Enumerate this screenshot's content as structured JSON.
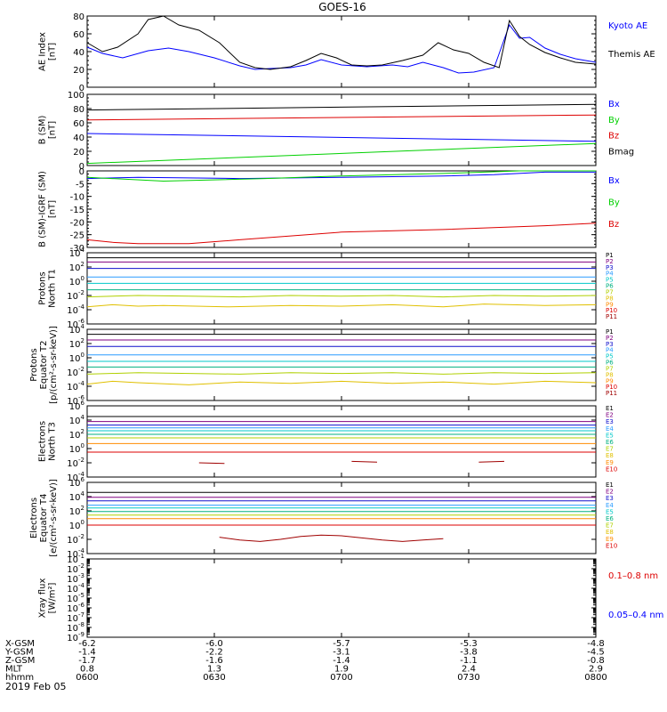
{
  "title": "GOES-16",
  "date_label": "2019 Feb 05",
  "time_ticks": [
    "0600",
    "0630",
    "0700",
    "0730",
    "0800"
  ],
  "orbit_rows": [
    {
      "label": "X-GSM",
      "values": [
        "-6.2",
        "-6.0",
        "-5.7",
        "-5.3",
        "-4.8"
      ]
    },
    {
      "label": "Y-GSM",
      "values": [
        "-1.4",
        "-2.2",
        "-3.1",
        "-3.8",
        "-4.5"
      ]
    },
    {
      "label": "Z-GSM",
      "values": [
        "-1.7",
        "-1.6",
        "-1.4",
        "-1.1",
        "-0.8"
      ]
    },
    {
      "label": "MLT",
      "values": [
        "0.8",
        "1.3",
        "1.9",
        "2.4",
        "2.9"
      ]
    },
    {
      "label": "hhmm",
      "values": [
        "0600",
        "0630",
        "0700",
        "0730",
        "0800"
      ]
    }
  ],
  "colors": {
    "black": "#000000",
    "blue": "#0000ff",
    "red": "#dd0000",
    "green": "#00d000",
    "purple": "#800080",
    "navy": "#1010cc",
    "skyblue": "#2a9cff",
    "cyan": "#00c8c8",
    "teal": "#00b080",
    "yellowgreen": "#b0d000",
    "yellow": "#e0c000",
    "orange": "#ff8c00",
    "darkred": "#a00000",
    "magenta": "#cc00cc"
  },
  "chart_data": [
    {
      "type": "line",
      "ylabel": [
        "AE Index",
        "[nT]"
      ],
      "ylim": [
        0,
        80
      ],
      "yticks": [
        0,
        20,
        40,
        60,
        80
      ],
      "series": [
        {
          "name": "Kyoto AE",
          "color": "blue",
          "x": [
            0,
            0.03,
            0.07,
            0.12,
            0.16,
            0.2,
            0.25,
            0.3,
            0.33,
            0.36,
            0.4,
            0.43,
            0.46,
            0.5,
            0.55,
            0.6,
            0.63,
            0.66,
            0.7,
            0.73,
            0.76,
            0.8,
            0.83,
            0.85,
            0.87,
            0.9,
            0.93,
            0.96,
            1
          ],
          "y": [
            45,
            38,
            33,
            41,
            44,
            40,
            33,
            24,
            20,
            21,
            22,
            25,
            31,
            25,
            23,
            25,
            23,
            28,
            22,
            16,
            17,
            22,
            70,
            55,
            56,
            44,
            37,
            32,
            28
          ]
        },
        {
          "name": "Themis AE",
          "color": "black",
          "x": [
            0,
            0.03,
            0.06,
            0.1,
            0.12,
            0.15,
            0.18,
            0.22,
            0.26,
            0.3,
            0.33,
            0.36,
            0.4,
            0.43,
            0.46,
            0.49,
            0.52,
            0.55,
            0.58,
            0.62,
            0.66,
            0.69,
            0.72,
            0.75,
            0.78,
            0.81,
            0.83,
            0.85,
            0.87,
            0.9,
            0.93,
            0.96,
            1
          ],
          "y": [
            50,
            40,
            45,
            60,
            76,
            80,
            70,
            64,
            50,
            28,
            22,
            20,
            23,
            30,
            38,
            33,
            25,
            24,
            25,
            30,
            36,
            50,
            42,
            38,
            28,
            22,
            75,
            57,
            48,
            39,
            33,
            28,
            26
          ]
        }
      ]
    },
    {
      "type": "line",
      "ylabel": [
        "B (SM)",
        "[nT]"
      ],
      "ylim": [
        0,
        100
      ],
      "yticks": [
        0,
        20,
        40,
        60,
        80,
        100
      ],
      "series": [
        {
          "name": "Bx",
          "color": "blue",
          "x": [
            0,
            1
          ],
          "y": [
            45,
            34
          ]
        },
        {
          "name": "By",
          "color": "green",
          "x": [
            0,
            1
          ],
          "y": [
            3,
            31
          ]
        },
        {
          "name": "Bz",
          "color": "red",
          "x": [
            0,
            1
          ],
          "y": [
            64,
            71
          ]
        },
        {
          "name": "Bmag",
          "color": "black",
          "x": [
            0,
            1
          ],
          "y": [
            78,
            86
          ]
        }
      ]
    },
    {
      "type": "line",
      "ylabel": [
        "B (SM)-IGRF (SM)",
        "[nT]"
      ],
      "ylim": [
        -30,
        0
      ],
      "yticks": [
        -30,
        -25,
        -20,
        -15,
        -10,
        -5,
        0
      ],
      "series": [
        {
          "name": "Bx",
          "color": "blue",
          "x": [
            0,
            0.1,
            0.3,
            0.5,
            0.7,
            0.8,
            0.9,
            1
          ],
          "y": [
            -3,
            -2.5,
            -3,
            -2.5,
            -2,
            -1.5,
            -0.5,
            -0.5
          ]
        },
        {
          "name": "By",
          "color": "green",
          "x": [
            0,
            0.15,
            0.35,
            0.5,
            0.7,
            0.85,
            1
          ],
          "y": [
            -2.5,
            -4,
            -3,
            -2,
            -1,
            0,
            0
          ]
        },
        {
          "name": "Bz",
          "color": "red",
          "x": [
            0,
            0.05,
            0.1,
            0.2,
            0.3,
            0.5,
            0.7,
            0.9,
            1
          ],
          "y": [
            -27,
            -28,
            -28.5,
            -28.5,
            -27,
            -24,
            -23,
            -21.5,
            -20.5
          ]
        }
      ]
    },
    {
      "type": "line",
      "log": true,
      "ylabel": [
        "Protons",
        "North T1"
      ],
      "ylim": [
        -6,
        4
      ],
      "ytick_exponents": [
        4,
        2,
        0,
        -2,
        -4,
        -6
      ],
      "series": [
        {
          "name": "P1",
          "color": "black",
          "x": [
            0,
            1
          ],
          "y": [
            3.3,
            3.3
          ]
        },
        {
          "name": "P2",
          "color": "purple",
          "x": [
            0,
            1
          ],
          "y": [
            2.7,
            2.7
          ]
        },
        {
          "name": "P3",
          "color": "navy",
          "x": [
            0,
            1
          ],
          "y": [
            1.8,
            1.8
          ]
        },
        {
          "name": "P4",
          "color": "skyblue",
          "x": [
            0,
            1
          ],
          "y": [
            0.6,
            0.6
          ]
        },
        {
          "name": "P5",
          "color": "cyan",
          "x": [
            0,
            1
          ],
          "y": [
            -0.3,
            -0.3
          ]
        },
        {
          "name": "P6",
          "color": "teal",
          "x": [
            0,
            1
          ],
          "y": [
            -1.2,
            -1.2
          ]
        },
        {
          "name": "P7",
          "color": "yellowgreen",
          "x": [
            0,
            0.1,
            0.2,
            0.3,
            0.4,
            0.5,
            0.6,
            0.7,
            0.8,
            0.9,
            1
          ],
          "y": [
            -2.2,
            -2,
            -2.1,
            -2.2,
            -2,
            -2.1,
            -2,
            -2.2,
            -2,
            -2.1,
            -2
          ]
        },
        {
          "name": "P8",
          "color": "yellow",
          "x": [
            0,
            0.05,
            0.1,
            0.15,
            0.28,
            0.4,
            0.5,
            0.6,
            0.7,
            0.78,
            0.9,
            1
          ],
          "y": [
            -3.6,
            -3.3,
            -3.5,
            -3.4,
            -3.6,
            -3.4,
            -3.5,
            -3.3,
            -3.6,
            -3.2,
            -3.4,
            -3.3
          ]
        }
      ]
    },
    {
      "type": "line",
      "log": true,
      "ylabel": [
        "Protons",
        "Equator T2",
        "[p/(cm²-s-sr-keV)]"
      ],
      "ylim": [
        -6,
        4
      ],
      "ytick_exponents": [
        4,
        2,
        0,
        -2,
        -4,
        -6
      ],
      "series": [
        {
          "name": "P1",
          "color": "black",
          "x": [
            0,
            1
          ],
          "y": [
            3.3,
            3.3
          ]
        },
        {
          "name": "P2",
          "color": "purple",
          "x": [
            0,
            1
          ],
          "y": [
            2.5,
            2.5
          ]
        },
        {
          "name": "P3",
          "color": "navy",
          "x": [
            0,
            1
          ],
          "y": [
            1.6,
            1.6
          ]
        },
        {
          "name": "P4",
          "color": "skyblue",
          "x": [
            0,
            1
          ],
          "y": [
            0.4,
            0.4
          ]
        },
        {
          "name": "P5",
          "color": "cyan",
          "x": [
            0,
            1
          ],
          "y": [
            -0.5,
            -0.5
          ]
        },
        {
          "name": "P6",
          "color": "teal",
          "x": [
            0,
            1
          ],
          "y": [
            -1.3,
            -1.3
          ]
        },
        {
          "name": "P7",
          "color": "yellowgreen",
          "x": [
            0,
            0.1,
            0.2,
            0.3,
            0.4,
            0.5,
            0.6,
            0.7,
            0.8,
            0.9,
            1
          ],
          "y": [
            -2.3,
            -2.1,
            -2.2,
            -2.3,
            -2.1,
            -2.2,
            -2.1,
            -2.3,
            -2.1,
            -2.2,
            -2.1
          ]
        },
        {
          "name": "P8",
          "color": "yellow",
          "x": [
            0,
            0.05,
            0.1,
            0.2,
            0.3,
            0.4,
            0.5,
            0.6,
            0.7,
            0.8,
            0.9,
            1
          ],
          "y": [
            -3.7,
            -3.3,
            -3.5,
            -3.8,
            -3.4,
            -3.6,
            -3.3,
            -3.6,
            -3.4,
            -3.7,
            -3.3,
            -3.5
          ]
        }
      ]
    },
    {
      "type": "line",
      "log": true,
      "ylabel": [
        "Electrons",
        "North T3"
      ],
      "ylim": [
        -4,
        6
      ],
      "ytick_exponents": [
        6,
        4,
        2,
        0,
        -2,
        -4
      ],
      "series": [
        {
          "name": "E1",
          "color": "black",
          "x": [
            0,
            1
          ],
          "y": [
            4.5,
            4.5
          ]
        },
        {
          "name": "E2",
          "color": "purple",
          "x": [
            0,
            1
          ],
          "y": [
            3.8,
            3.8
          ]
        },
        {
          "name": "E3",
          "color": "navy",
          "x": [
            0,
            1
          ],
          "y": [
            3.3,
            3.3
          ]
        },
        {
          "name": "E4",
          "color": "skyblue",
          "x": [
            0,
            1
          ],
          "y": [
            2.9,
            2.9
          ]
        },
        {
          "name": "E5",
          "color": "cyan",
          "x": [
            0,
            1
          ],
          "y": [
            2.5,
            2.5
          ]
        },
        {
          "name": "E6",
          "color": "teal",
          "x": [
            0,
            1
          ],
          "y": [
            2.0,
            2.0
          ]
        },
        {
          "name": "E7",
          "color": "yellowgreen",
          "x": [
            0,
            1
          ],
          "y": [
            1.5,
            1.5
          ]
        },
        {
          "name": "E8",
          "color": "orange",
          "x": [
            0,
            1
          ],
          "y": [
            0.7,
            0.7
          ]
        },
        {
          "name": "E9",
          "color": "red",
          "x": [
            0,
            1
          ],
          "y": [
            -0.5,
            -0.5
          ]
        },
        {
          "name": "E10",
          "color": "darkred",
          "x": [
            0.22,
            0.27,
            0.52,
            0.57,
            0.77,
            0.82
          ],
          "y": [
            -2.0,
            -2.1,
            -1.8,
            -1.9,
            -1.9,
            -1.8
          ]
        }
      ]
    },
    {
      "type": "line",
      "log": true,
      "ylabel": [
        "Electrons",
        "Equator T4",
        "[e/(cm²-s-sr-keV)]"
      ],
      "ylim": [
        -4,
        6
      ],
      "ytick_exponents": [
        6,
        4,
        2,
        0,
        -2,
        -4
      ],
      "series": [
        {
          "name": "E1",
          "color": "black",
          "x": [
            0,
            1
          ],
          "y": [
            4.6,
            4.6
          ]
        },
        {
          "name": "E2",
          "color": "purple",
          "x": [
            0,
            1
          ],
          "y": [
            3.9,
            3.9
          ]
        },
        {
          "name": "E3",
          "color": "navy",
          "x": [
            0,
            1
          ],
          "y": [
            3.4,
            3.4
          ]
        },
        {
          "name": "E4",
          "color": "skyblue",
          "x": [
            0,
            1
          ],
          "y": [
            2.8,
            2.8
          ]
        },
        {
          "name": "E5",
          "color": "cyan",
          "x": [
            0,
            1
          ],
          "y": [
            2.4,
            2.4
          ]
        },
        {
          "name": "E6",
          "color": "teal",
          "x": [
            0,
            1
          ],
          "y": [
            1.9,
            1.9
          ]
        },
        {
          "name": "E7",
          "color": "yellowgreen",
          "x": [
            0,
            1
          ],
          "y": [
            1.4,
            1.4
          ]
        },
        {
          "name": "E8",
          "color": "orange",
          "x": [
            0,
            1
          ],
          "y": [
            0.9,
            0.9
          ]
        },
        {
          "name": "E9",
          "color": "red",
          "x": [
            0,
            1
          ],
          "y": [
            0.0,
            0.0
          ]
        },
        {
          "name": "E10",
          "color": "darkred",
          "x": [
            0.26,
            0.3,
            0.34,
            0.38,
            0.42,
            0.46,
            0.5,
            0.54,
            0.58,
            0.62,
            0.66,
            0.7
          ],
          "y": [
            -1.7,
            -2.1,
            -2.3,
            -2.0,
            -1.6,
            -1.4,
            -1.5,
            -1.8,
            -2.1,
            -2.3,
            -2.1,
            -1.9
          ]
        }
      ]
    },
    {
      "type": "line",
      "log": true,
      "ylabel": [
        "Xray flux",
        "[W/m²]"
      ],
      "ylim": [
        -9,
        -1
      ],
      "ytick_exponents": [
        -1,
        -2,
        -3,
        -4,
        -5,
        -6,
        -7,
        -8,
        -9
      ],
      "series": [
        {
          "name": "0.1–0.8 nm",
          "color": "red",
          "x": [],
          "y": []
        },
        {
          "name": "0.05–0.4 nm",
          "color": "blue",
          "x": [],
          "y": []
        }
      ]
    }
  ]
}
